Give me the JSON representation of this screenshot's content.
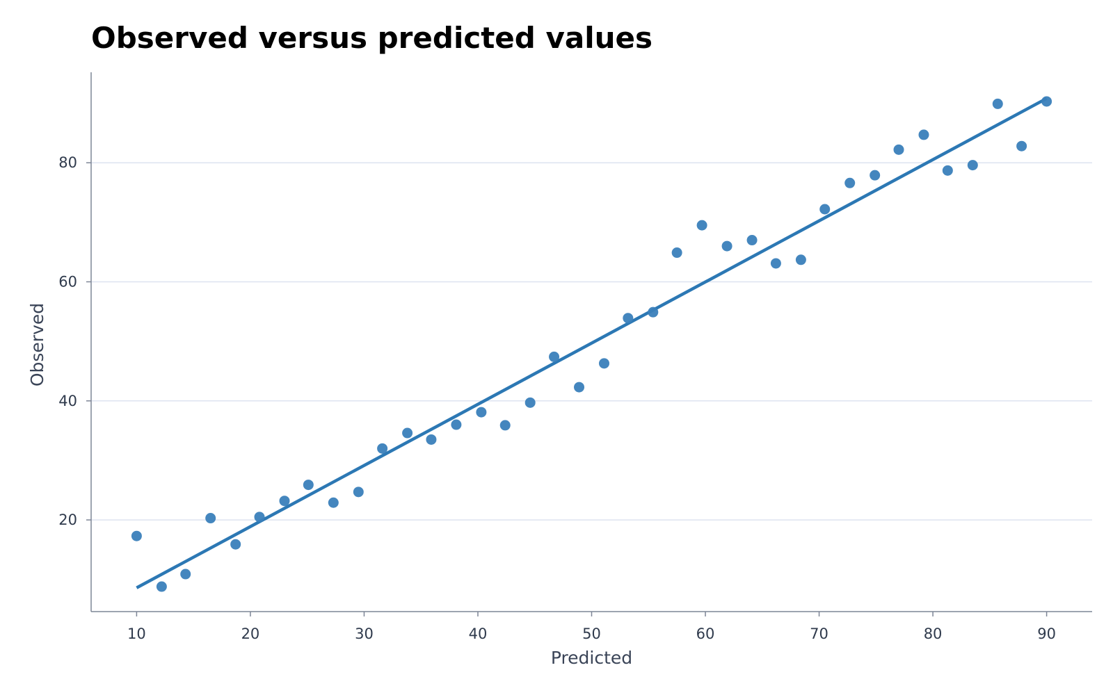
{
  "chart_data": {
    "type": "scatter",
    "title": "Observed versus predicted values",
    "xlabel": "Predicted",
    "ylabel": "Observed",
    "xlim": [
      6,
      94
    ],
    "ylim": [
      4.6,
      95.2
    ],
    "xticks": [
      10,
      20,
      30,
      40,
      50,
      60,
      70,
      80,
      90
    ],
    "yticks": [
      20,
      40,
      60,
      80
    ],
    "grid": "horizontal",
    "colors": {
      "points": "#3a7fba",
      "line": "#2c78b4",
      "grid": "#dde3f0",
      "axis": "#7d8596"
    },
    "series": [
      {
        "type": "scatter",
        "x": [
          10.0,
          12.2,
          14.3,
          16.5,
          18.7,
          20.8,
          23.0,
          25.1,
          27.3,
          29.5,
          31.6,
          33.8,
          35.9,
          38.1,
          40.3,
          42.4,
          44.6,
          46.7,
          48.9,
          51.1,
          53.2,
          55.4,
          57.5,
          59.7,
          61.9,
          64.1,
          66.2,
          68.4,
          70.5,
          72.7,
          74.9,
          77.0,
          79.2,
          81.3,
          83.5,
          85.7,
          87.8,
          90.0
        ],
        "y": [
          17.3,
          8.8,
          10.9,
          20.3,
          15.9,
          20.5,
          23.2,
          25.9,
          22.9,
          24.7,
          32.0,
          34.6,
          33.5,
          36.0,
          38.1,
          35.9,
          39.7,
          47.4,
          42.3,
          46.3,
          53.9,
          54.9,
          64.9,
          69.5,
          66.0,
          67.0,
          63.1,
          63.7,
          72.2,
          76.6,
          77.9,
          82.2,
          84.7,
          78.7,
          79.6,
          89.9,
          82.8,
          90.3
        ]
      },
      {
        "type": "line",
        "x": [
          10,
          90
        ],
        "y": [
          8.6,
          90.8
        ]
      }
    ]
  }
}
